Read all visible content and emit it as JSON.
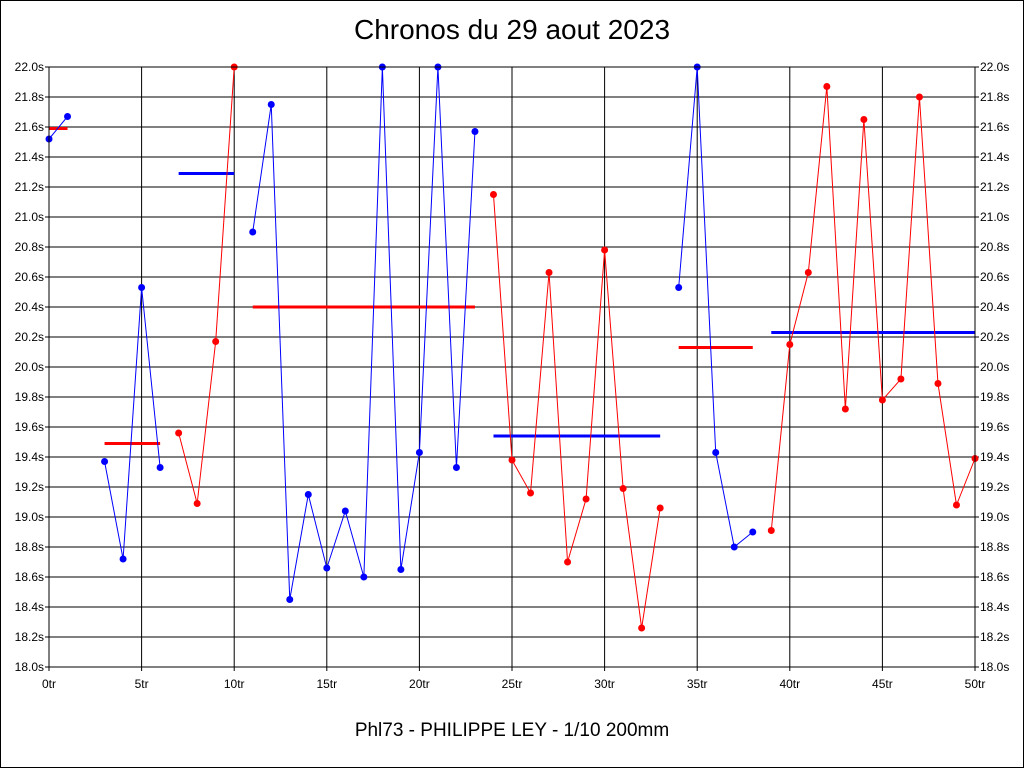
{
  "chart_data": {
    "type": "line",
    "title": "Chronos du 29 aout 2023",
    "subtitle": "Phl73 - PHILIPPE LEY - 1/10 200mm",
    "xlim": [
      0,
      50
    ],
    "ylim": [
      18.0,
      22.0
    ],
    "grid": true,
    "x_ticks": [
      {
        "value": 0,
        "label": "0tr"
      },
      {
        "value": 5,
        "label": "5tr"
      },
      {
        "value": 10,
        "label": "10tr"
      },
      {
        "value": 15,
        "label": "15tr"
      },
      {
        "value": 20,
        "label": "20tr"
      },
      {
        "value": 25,
        "label": "25tr"
      },
      {
        "value": 30,
        "label": "30tr"
      },
      {
        "value": 35,
        "label": "35tr"
      },
      {
        "value": 40,
        "label": "40tr"
      },
      {
        "value": 45,
        "label": "45tr"
      },
      {
        "value": 50,
        "label": "50tr"
      }
    ],
    "y_ticks": [
      {
        "value": 18.0,
        "label": "18.0s"
      },
      {
        "value": 18.2,
        "label": "18.2s"
      },
      {
        "value": 18.4,
        "label": "18.4s"
      },
      {
        "value": 18.6,
        "label": "18.6s"
      },
      {
        "value": 18.8,
        "label": "18.8s"
      },
      {
        "value": 19.0,
        "label": "19.0s"
      },
      {
        "value": 19.2,
        "label": "19.2s"
      },
      {
        "value": 19.4,
        "label": "19.4s"
      },
      {
        "value": 19.6,
        "label": "19.6s"
      },
      {
        "value": 19.8,
        "label": "19.8s"
      },
      {
        "value": 20.0,
        "label": "20.0s"
      },
      {
        "value": 20.2,
        "label": "20.2s"
      },
      {
        "value": 20.4,
        "label": "20.4s"
      },
      {
        "value": 20.6,
        "label": "20.6s"
      },
      {
        "value": 20.8,
        "label": "20.8s"
      },
      {
        "value": 21.0,
        "label": "21.0s"
      },
      {
        "value": 21.2,
        "label": "21.2s"
      },
      {
        "value": 21.4,
        "label": "21.4s"
      },
      {
        "value": 21.6,
        "label": "21.6s"
      },
      {
        "value": 21.8,
        "label": "21.8s"
      },
      {
        "value": 22.0,
        "label": "22.0s"
      }
    ],
    "series": [
      {
        "color": "#0000ff",
        "points": [
          [
            0,
            21.52
          ],
          [
            1,
            21.67
          ]
        ],
        "average": {
          "value": 21.59,
          "x": [
            0,
            1
          ],
          "color": "#ff0000"
        }
      },
      {
        "color": "#0000ff",
        "points": [
          [
            3,
            19.37
          ],
          [
            4,
            18.72
          ],
          [
            5,
            20.53
          ],
          [
            6,
            19.33
          ]
        ],
        "average": {
          "value": 19.49,
          "x": [
            3,
            6
          ],
          "color": "#ff0000"
        }
      },
      {
        "color": "#ff0000",
        "points": [
          [
            7,
            19.56
          ],
          [
            8,
            19.09
          ],
          [
            9,
            20.17
          ],
          [
            10,
            22.0
          ]
        ],
        "average": {
          "value": 21.29,
          "x": [
            7,
            10
          ],
          "color": "#0000ff"
        }
      },
      {
        "color": "#0000ff",
        "points": [
          [
            11,
            20.9
          ],
          [
            12,
            21.75
          ],
          [
            13,
            18.45
          ],
          [
            14,
            19.15
          ],
          [
            15,
            18.66
          ],
          [
            16,
            19.04
          ],
          [
            17,
            18.6
          ],
          [
            18,
            22.0
          ],
          [
            19,
            18.65
          ],
          [
            20,
            19.43
          ],
          [
            21,
            22.0
          ],
          [
            22,
            19.33
          ],
          [
            23,
            21.57
          ]
        ],
        "average": {
          "value": 20.4,
          "x": [
            11,
            23
          ],
          "color": "#ff0000"
        }
      },
      {
        "color": "#ff0000",
        "points": [
          [
            24,
            21.15
          ],
          [
            25,
            19.38
          ],
          [
            26,
            19.16
          ],
          [
            27,
            20.63
          ],
          [
            28,
            18.7
          ],
          [
            29,
            19.12
          ],
          [
            30,
            20.78
          ],
          [
            31,
            19.19
          ],
          [
            32,
            18.26
          ],
          [
            33,
            19.06
          ]
        ],
        "average": {
          "value": 19.54,
          "x": [
            24,
            33
          ],
          "color": "#0000ff"
        }
      },
      {
        "color": "#0000ff",
        "points": [
          [
            34,
            20.53
          ],
          [
            35,
            22.0
          ],
          [
            36,
            19.43
          ],
          [
            37,
            18.8
          ],
          [
            38,
            18.9
          ]
        ],
        "average": {
          "value": 20.13,
          "x": [
            34,
            38
          ],
          "color": "#ff0000"
        }
      },
      {
        "color": "#ff0000",
        "points": [
          [
            39,
            18.91
          ],
          [
            40,
            20.15
          ],
          [
            41,
            20.63
          ],
          [
            42,
            21.87
          ],
          [
            43,
            19.72
          ],
          [
            44,
            21.65
          ],
          [
            45,
            19.78
          ],
          [
            46,
            19.92
          ],
          [
            47,
            21.8
          ],
          [
            48,
            19.89
          ],
          [
            49,
            19.08
          ],
          [
            50,
            19.39
          ]
        ],
        "average": {
          "value": 20.23,
          "x": [
            39,
            50
          ],
          "color": "#0000ff"
        }
      }
    ]
  }
}
